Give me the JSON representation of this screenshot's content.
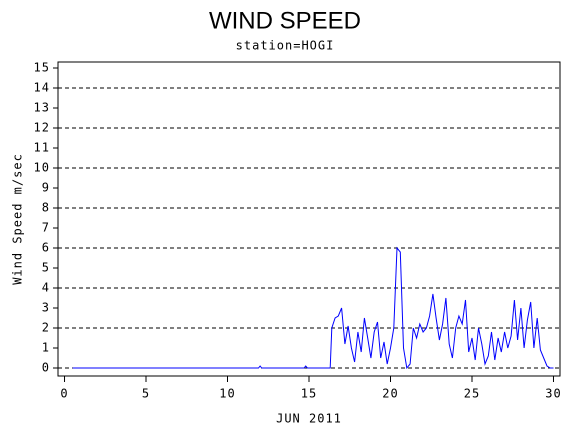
{
  "chart_data": {
    "type": "line",
    "title": "WIND SPEED",
    "subtitle": "station=HOGI",
    "y_label": "Wind Speed m/sec",
    "x_label": "JUN 2011",
    "xlim": [
      -0.4,
      30.4
    ],
    "xticks": [
      0,
      5,
      10,
      15,
      20,
      25,
      30
    ],
    "ylim": [
      -0.4,
      15.3
    ],
    "yticks": [
      0,
      1,
      2,
      3,
      4,
      5,
      6,
      7,
      8,
      9,
      10,
      11,
      12,
      13,
      14,
      15
    ],
    "grid": true,
    "series": [
      {
        "color": "#0000ff",
        "x": [
          0.5,
          11.9,
          12.0,
          12.1,
          14.7,
          14.8,
          14.9,
          16.3,
          16.4,
          16.6,
          16.8,
          17.0,
          17.2,
          17.4,
          17.6,
          17.8,
          18.0,
          18.2,
          18.4,
          18.6,
          18.8,
          19.0,
          19.2,
          19.4,
          19.6,
          19.8,
          20.0,
          20.2,
          20.4,
          20.6,
          20.8,
          21.0,
          21.2,
          21.4,
          21.6,
          21.8,
          22.0,
          22.2,
          22.4,
          22.6,
          22.8,
          23.0,
          23.2,
          23.4,
          23.6,
          23.8,
          24.0,
          24.2,
          24.4,
          24.6,
          24.8,
          25.0,
          25.2,
          25.4,
          25.6,
          25.8,
          26.0,
          26.2,
          26.4,
          26.6,
          26.8,
          27.0,
          27.2,
          27.4,
          27.6,
          27.8,
          28.0,
          28.2,
          28.4,
          28.6,
          28.8,
          29.0,
          29.2,
          29.4,
          29.6,
          29.8,
          30.0
        ],
        "values": [
          0,
          0,
          0.1,
          0,
          0,
          0.1,
          0,
          0,
          2.0,
          2.5,
          2.6,
          3.0,
          1.2,
          2.1,
          1.0,
          0.3,
          1.8,
          0.8,
          2.5,
          1.5,
          0.5,
          1.8,
          2.3,
          0.5,
          1.3,
          0.2,
          1.0,
          2.0,
          6.0,
          5.8,
          1.0,
          0,
          0.2,
          2.0,
          1.5,
          2.2,
          1.8,
          2.0,
          2.6,
          3.7,
          2.5,
          1.4,
          2.2,
          3.5,
          1.2,
          0.5,
          2.0,
          2.6,
          2.2,
          3.4,
          0.8,
          1.5,
          0.4,
          2.0,
          1.2,
          0.2,
          0.6,
          1.8,
          0.4,
          1.5,
          0.8,
          1.8,
          1.0,
          1.6,
          3.4,
          1.4,
          3.0,
          1.0,
          2.4,
          3.3,
          1.0,
          2.5,
          0.9,
          0.5,
          0.1,
          0,
          0
        ]
      }
    ]
  }
}
